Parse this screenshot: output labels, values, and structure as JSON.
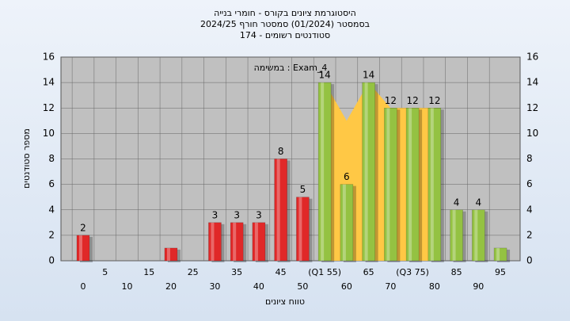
{
  "chart_data": {
    "type": "bar",
    "title": "היסטוגרמת ציונים בקורס - חומרי בנייה",
    "subtitle": "בסמסטר  (01/2024)  סמסטר חורף 2024/25",
    "subtitle2": "סטודנטים רשומים - 174",
    "annotation": "במשימה : Exam_4",
    "x_label": "טווח ציונים",
    "y_label": "מספר סטודנטים",
    "categories": [
      "0",
      "5",
      "10",
      "15",
      "20",
      "25",
      "30",
      "35",
      "40",
      "45",
      "50",
      "(Q1 55)",
      "60",
      "65",
      "70",
      "(Q3 75)",
      "80",
      "85",
      "90",
      "95"
    ],
    "values": [
      2,
      0,
      0,
      0,
      1,
      0,
      3,
      3,
      3,
      8,
      5,
      14,
      6,
      14,
      12,
      12,
      12,
      4,
      4,
      1
    ],
    "value_labels": [
      "2",
      null,
      null,
      null,
      null,
      null,
      "3",
      "3",
      "3",
      "8",
      "5",
      "14",
      "6",
      "14",
      "12",
      "12",
      "12",
      "4",
      "4",
      null
    ],
    "colors": [
      "#e02828",
      "#e02828",
      "#e02828",
      "#e02828",
      "#e02828",
      "#e02828",
      "#e02828",
      "#e02828",
      "#e02828",
      "#e02828",
      "#e02828",
      "#94c242",
      "#94c242",
      "#94c242",
      "#94c242",
      "#94c242",
      "#94c242",
      "#94c242",
      "#94c242",
      "#94c242"
    ],
    "area_values": [
      null,
      null,
      null,
      null,
      null,
      null,
      null,
      null,
      null,
      null,
      null,
      14,
      11,
      14,
      12,
      12,
      12,
      null,
      null,
      null
    ],
    "area_color": "#ffc845",
    "ylim": [
      0,
      16
    ],
    "yticks": [
      0,
      2,
      4,
      6,
      8,
      10,
      12,
      14,
      16
    ],
    "grid": true
  }
}
